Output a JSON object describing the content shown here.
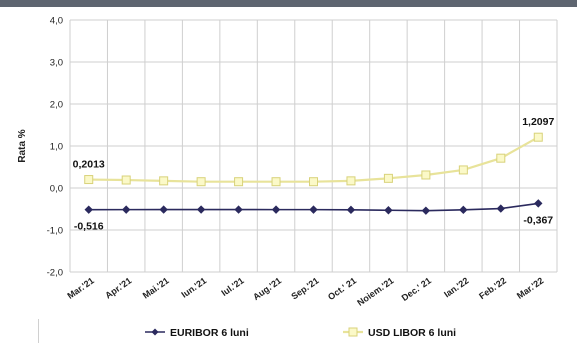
{
  "chart_data": {
    "type": "line",
    "title": "",
    "xlabel": "",
    "ylabel": "Rata %",
    "ylim": [
      -2.0,
      4.0
    ],
    "yticks": [
      4.0,
      3.0,
      2.0,
      1.0,
      0.0,
      -1.0,
      -2.0
    ],
    "ytick_labels": [
      "4,0",
      "3,0",
      "2,0",
      "1,0",
      "0,0",
      "-1,0",
      "-2,0"
    ],
    "grid": true,
    "legend_position": "bottom",
    "categories": [
      "Mar.'21",
      "Apr.'21",
      "Mai.'21",
      "Iun.'21",
      "Iul.'21",
      "Aug.'21",
      "Sep.'21",
      "Oct.' 21",
      "Noiem.'21",
      "Dec.' 21",
      "Ian.'22",
      "Feb.'22",
      "Mar.'22"
    ],
    "series": [
      {
        "name": "EURIBOR 6 luni",
        "color": "#2b2a5e",
        "marker": "diamond",
        "values": [
          -0.516,
          -0.515,
          -0.514,
          -0.513,
          -0.514,
          -0.515,
          -0.515,
          -0.52,
          -0.53,
          -0.54,
          -0.52,
          -0.49,
          -0.367
        ]
      },
      {
        "name": "USD LIBOR 6 luni",
        "color": "#e8e39a",
        "marker": "square",
        "values": [
          0.2013,
          0.19,
          0.17,
          0.15,
          0.15,
          0.15,
          0.15,
          0.17,
          0.23,
          0.31,
          0.43,
          0.71,
          1.2097
        ]
      }
    ],
    "annotations": [
      {
        "text": "0,2013",
        "series": 1,
        "index": 0,
        "position": "above"
      },
      {
        "text": "-0,516",
        "series": 0,
        "index": 0,
        "position": "below"
      },
      {
        "text": "1,2097",
        "series": 1,
        "index": 12,
        "position": "above"
      },
      {
        "text": "-0,367",
        "series": 0,
        "index": 12,
        "position": "below"
      }
    ]
  }
}
